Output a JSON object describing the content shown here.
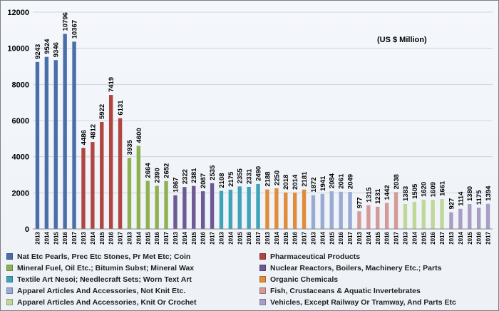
{
  "chart_data": {
    "type": "bar",
    "unit_note": "(US $ Million)",
    "ylim": [
      0,
      12000
    ],
    "yticks": [
      0,
      2000,
      4000,
      6000,
      8000,
      10000,
      12000
    ],
    "grid": true,
    "legend_position": "bottom",
    "years": [
      "2013",
      "2014",
      "2015",
      "2016",
      "2017"
    ],
    "series": [
      {
        "name": "Nat Etc Pearls, Prec Etc Stones, Pr Met Etc; Coin",
        "color": "#4a6ea9",
        "values": [
          9243,
          9524,
          9346,
          10796,
          10367
        ]
      },
      {
        "name": "Pharmaceutical Products",
        "color": "#b04541",
        "values": [
          4486,
          4812,
          5922,
          7419,
          6131
        ]
      },
      {
        "name": "Mineral Fuel, Oil Etc.; Bitumin Subst; Mineral Wax",
        "color": "#8fb151",
        "values": [
          3935,
          4600,
          2664,
          2390,
          2652
        ]
      },
      {
        "name": "Nuclear Reactors, Boilers, Machinery Etc.; Parts",
        "color": "#6d5a95",
        "values": [
          1867,
          2322,
          2381,
          2087,
          2535
        ]
      },
      {
        "name": "Textile Art Nesoi; Needlecraft Sets; Worn Text Art",
        "color": "#3fa3b9",
        "values": [
          2108,
          2175,
          2355,
          2331,
          2490
        ]
      },
      {
        "name": "Organic Chemicals",
        "color": "#e08c3a",
        "values": [
          2188,
          2250,
          2018,
          2014,
          2181
        ]
      },
      {
        "name": "Apparel Articles And Accessories, Not Knit Etc.",
        "color": "#97abd3",
        "values": [
          1872,
          1941,
          2084,
          2061,
          2049
        ]
      },
      {
        "name": "Fish, Crustaceans & Aquatic Invertebrates",
        "color": "#d59a98",
        "values": [
          977,
          1315,
          1231,
          1442,
          2038
        ]
      },
      {
        "name": "Apparel Articles And Accessories, Knit Or Crochet",
        "color": "#bfd89a",
        "values": [
          1383,
          1505,
          1620,
          1609,
          1661
        ]
      },
      {
        "name": "Vehicles, Except Railway Or Tramway, And Parts Etc",
        "color": "#a89ec4",
        "values": [
          927,
          1114,
          1380,
          1175,
          1394
        ]
      }
    ]
  }
}
